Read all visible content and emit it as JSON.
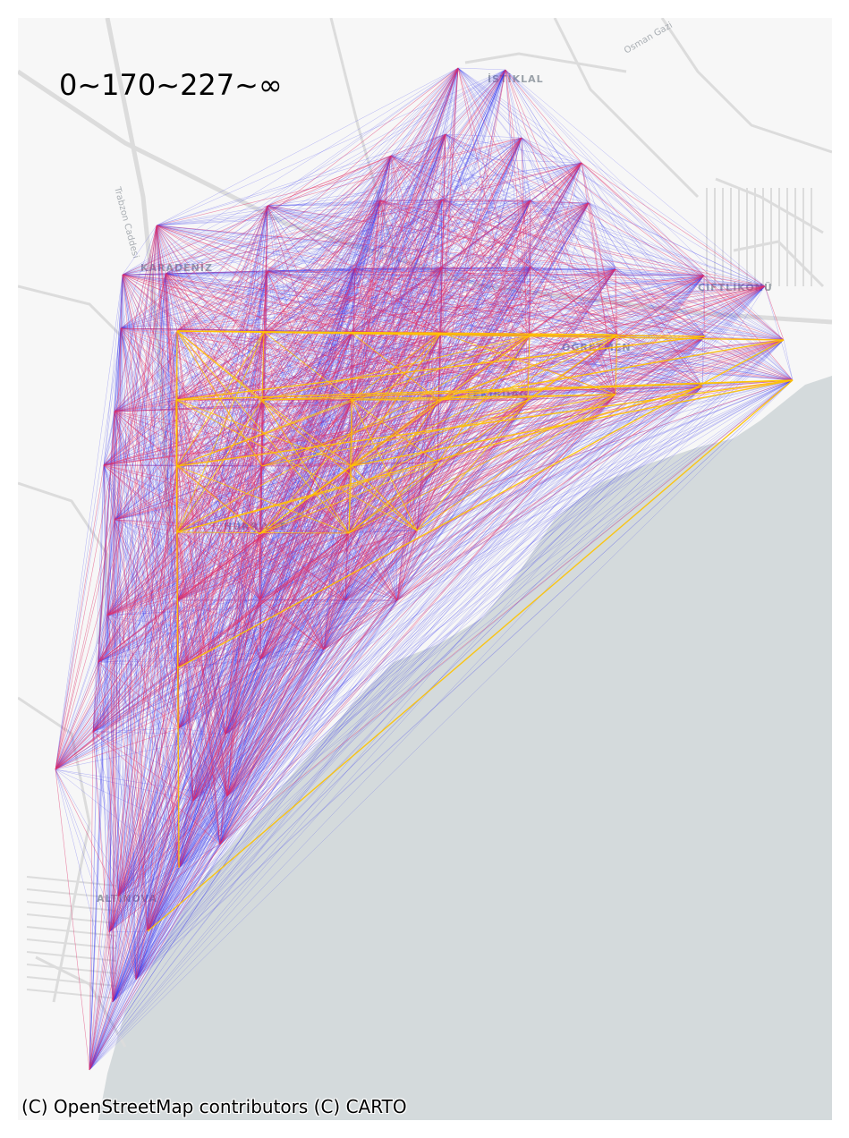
{
  "legend": {
    "text": "0~170~227~∞"
  },
  "attribution": {
    "text": "(C) OpenStreetMap contributors (C) CARTO"
  },
  "basemap": {
    "land_color": "#f7f7f7",
    "sea_color": "#d4dadc",
    "road_color": "#dcdcdc",
    "place_labels": [
      "İSTİKLAL",
      "KARADENİZ",
      "ÇİFTLİKÖNÜ",
      "OĞRETMEN",
      "TEKİRDAĞ",
      "ALTINOVA",
      "HÜRRİYET"
    ],
    "road_labels": [
      "Trabzon Caddesi",
      "Osman Gazi"
    ]
  },
  "flow_colors": {
    "low": "#3333ee",
    "mid": "#e0306a",
    "high": "#ffc400"
  },
  "nodes_count_hint": "grid of flow origin/destination points"
}
